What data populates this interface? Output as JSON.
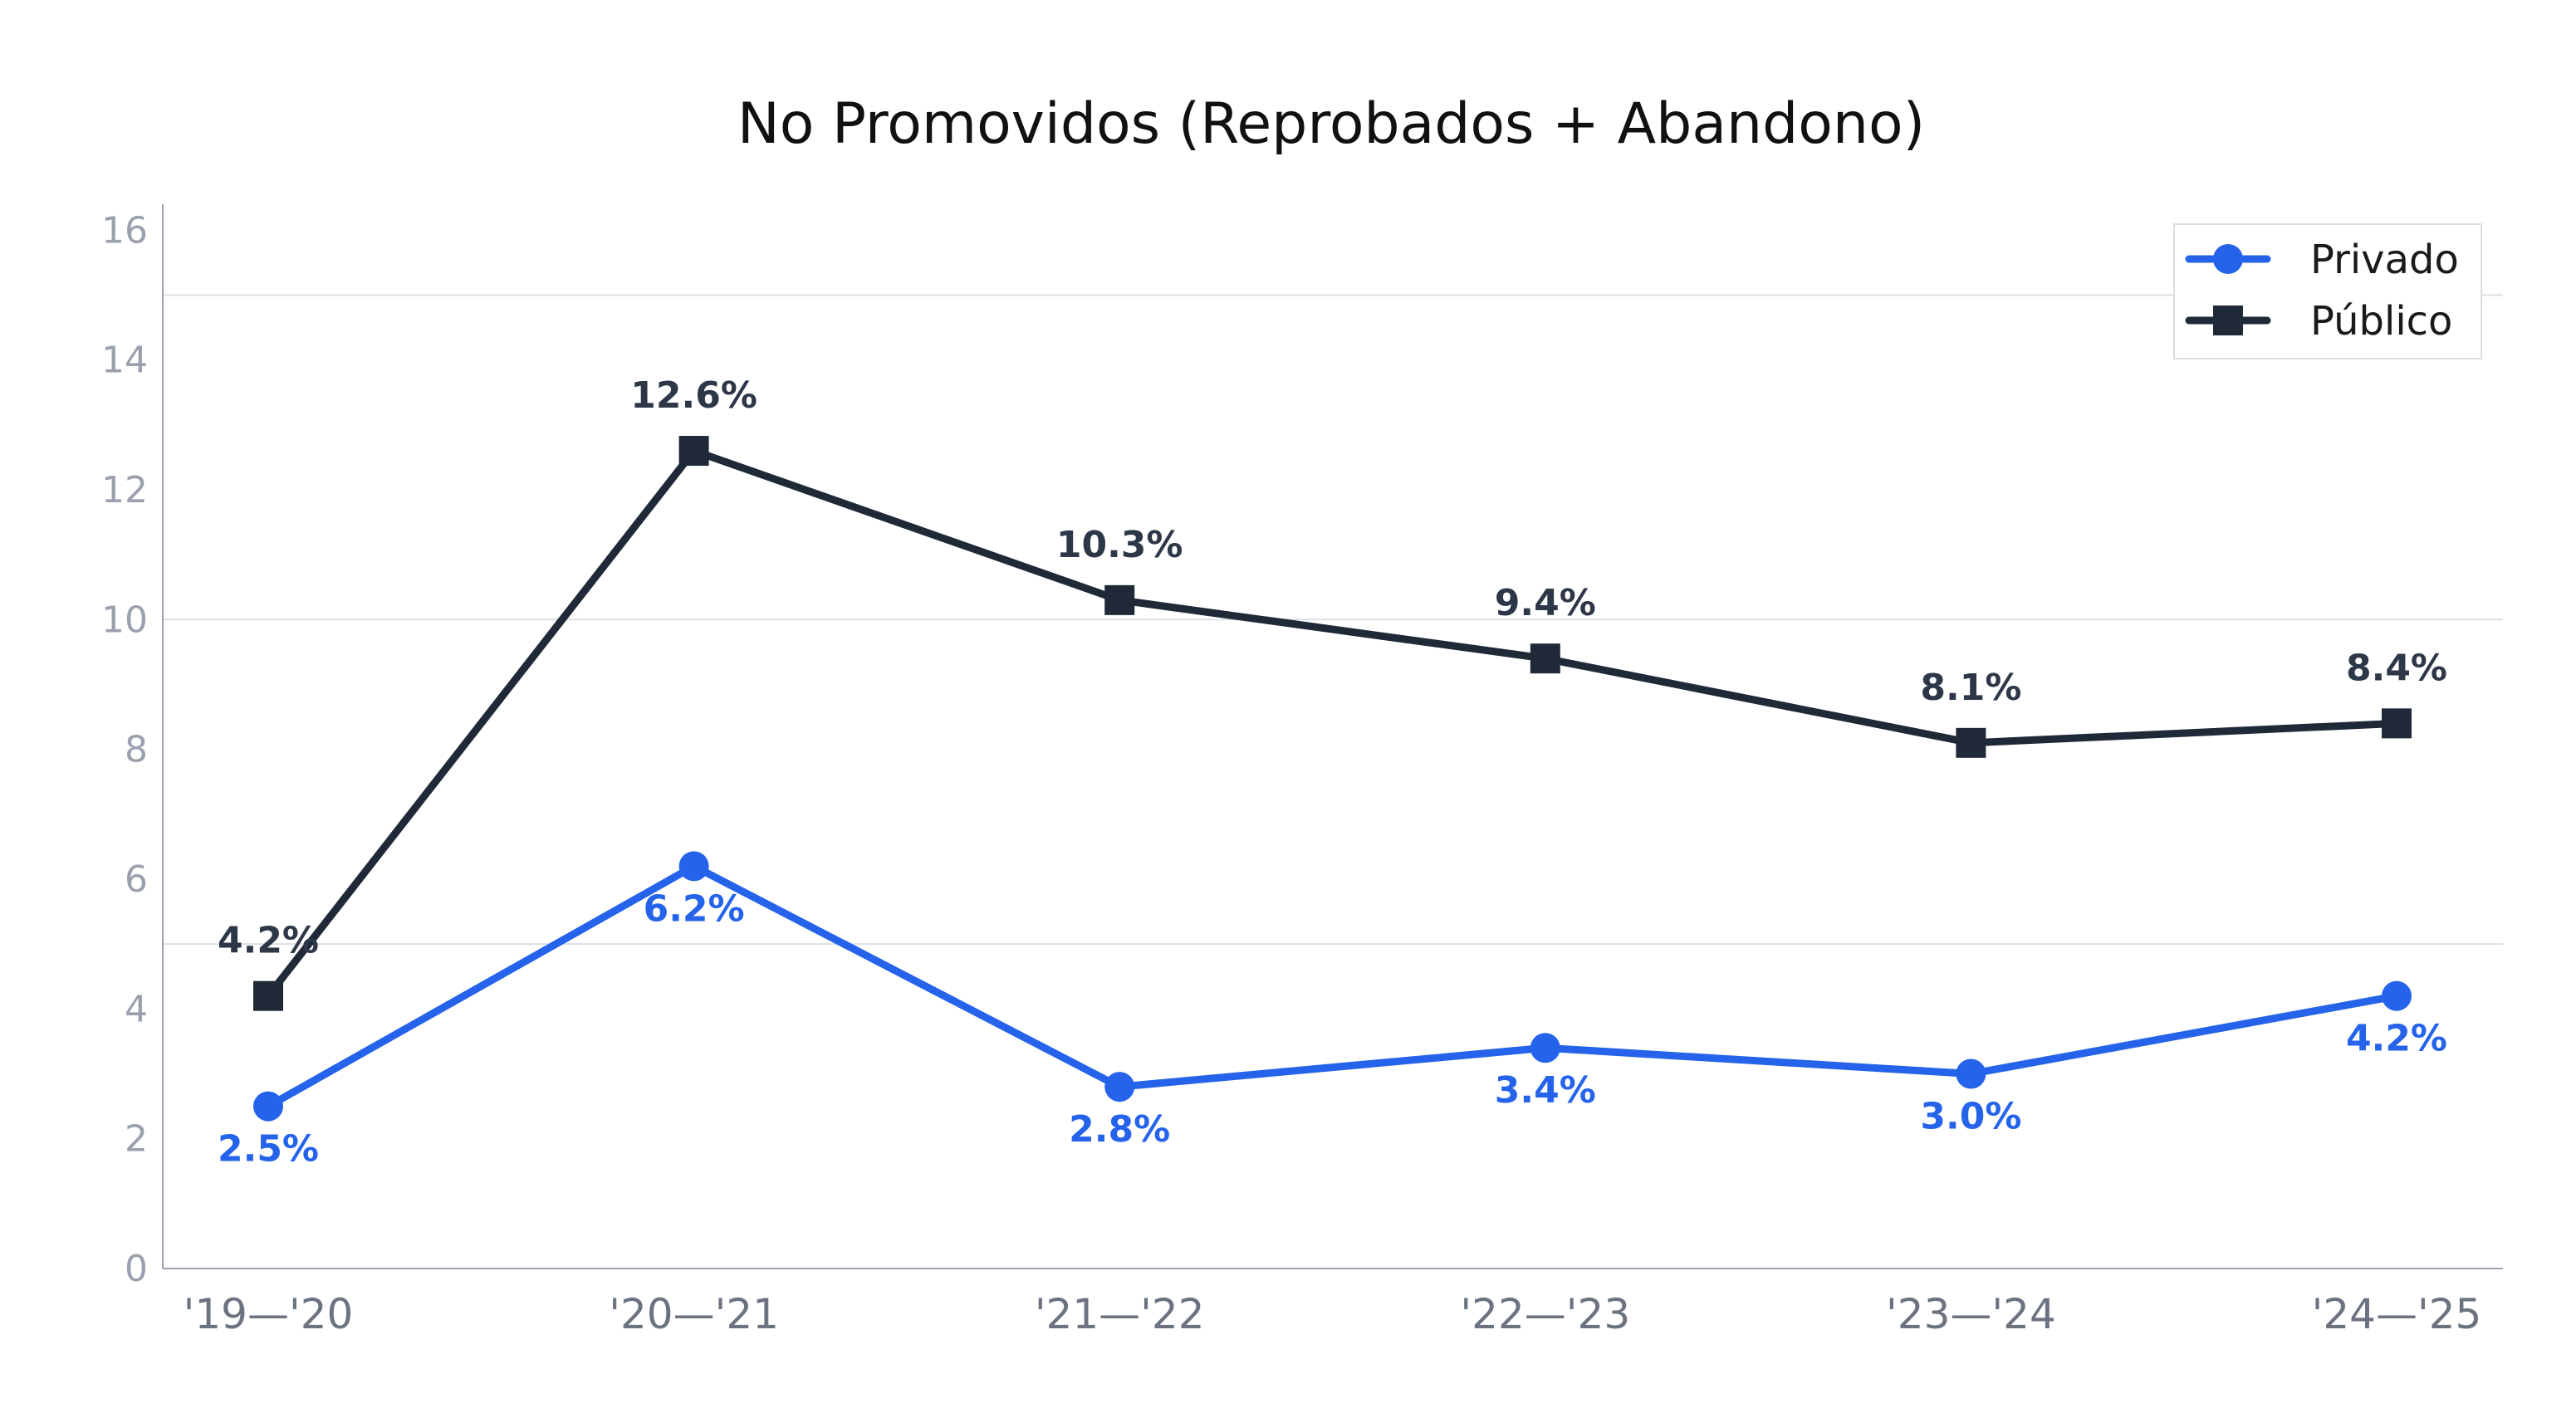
{
  "chart_data": {
    "type": "line",
    "title": "No Promovidos (Reprobados + Abandono)",
    "xlabel": "",
    "ylabel": "",
    "categories": [
      "'19—'20",
      "'20—'21",
      "'21—'22",
      "'22—'23",
      "'23—'24",
      "'24—'25"
    ],
    "ylim": [
      0,
      16.4
    ],
    "yticks": [
      0,
      2,
      4,
      6,
      8,
      10,
      12,
      14,
      16
    ],
    "gridlines": [
      5,
      10,
      15
    ],
    "legend_position": "top-right",
    "series": [
      {
        "name": "Privado",
        "color": "#2563eb",
        "marker": "circle",
        "values": [
          2.5,
          6.2,
          2.8,
          3.4,
          3.0,
          4.2
        ],
        "labels": [
          "2.5%",
          "6.2%",
          "2.8%",
          "3.4%",
          "3.0%",
          "4.2%"
        ],
        "label_position": "below"
      },
      {
        "name": "Público",
        "color": "#1f2937",
        "marker": "square",
        "values": [
          4.2,
          12.6,
          10.3,
          9.4,
          8.1,
          8.4
        ],
        "labels": [
          "4.2%",
          "12.6%",
          "10.3%",
          "9.4%",
          "8.1%",
          "8.4%"
        ],
        "label_position": "above"
      }
    ]
  }
}
